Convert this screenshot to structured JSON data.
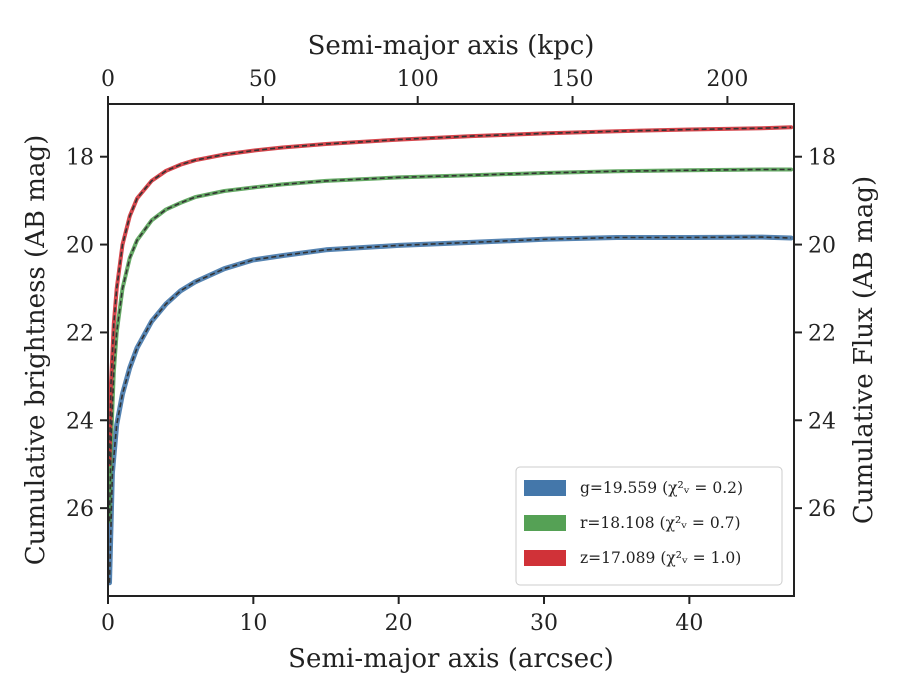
{
  "chart_data": {
    "type": "line",
    "xlabel": "Semi-major axis (arcsec)",
    "x2label": "Semi-major axis (kpc)",
    "ylabel": "Cumulative brightness (AB mag)",
    "y2label": "Cumulative Flux (AB mag)",
    "xlim": [
      0,
      47.2
    ],
    "x2lim": [
      0,
      221.5
    ],
    "ylim": [
      28.0,
      16.8
    ],
    "y_inverted": true,
    "xticks": [
      0,
      10,
      20,
      30,
      40
    ],
    "xtick_labels": [
      "0",
      "10",
      "20",
      "30",
      "40"
    ],
    "x2ticks": [
      0,
      50,
      100,
      150,
      200
    ],
    "x2tick_labels": [
      "0",
      "50",
      "100",
      "150",
      "200"
    ],
    "yticks": [
      18,
      20,
      22,
      24,
      26
    ],
    "ytick_labels": [
      "18",
      "20",
      "22",
      "24",
      "26"
    ],
    "grid": false,
    "legend_position": "lower-right",
    "series": [
      {
        "name": "g=19.559",
        "chi_label": "(χ²ᵥ = 0.2)",
        "color": "#4477aa",
        "x": [
          0.1,
          0.3,
          0.6,
          1.0,
          1.5,
          2.0,
          3.0,
          4.0,
          5.0,
          6.0,
          8.0,
          10.0,
          12.0,
          15.0,
          20.0,
          25.0,
          30.0,
          35.0,
          40.0,
          45.0,
          47.0
        ],
        "y": [
          27.7,
          25.2,
          24.1,
          23.4,
          22.8,
          22.35,
          21.75,
          21.35,
          21.05,
          20.85,
          20.55,
          20.35,
          20.25,
          20.12,
          20.02,
          19.95,
          19.88,
          19.84,
          19.84,
          19.83,
          19.85
        ]
      },
      {
        "name": "r=18.108",
        "chi_label": "(χ²ᵥ = 0.7)",
        "color": "#55a155",
        "x": [
          0.1,
          0.2,
          0.4,
          0.6,
          1.0,
          1.5,
          2.0,
          3.0,
          4.0,
          5.0,
          6.0,
          8.0,
          10.0,
          12.0,
          15.0,
          20.0,
          25.0,
          30.0,
          35.0,
          40.0,
          45.0,
          47.0
        ],
        "y": [
          26.3,
          24.6,
          22.9,
          22.0,
          21.0,
          20.3,
          19.9,
          19.45,
          19.2,
          19.05,
          18.92,
          18.78,
          18.7,
          18.63,
          18.55,
          18.47,
          18.42,
          18.37,
          18.33,
          18.31,
          18.29,
          18.29
        ]
      },
      {
        "name": "z=17.089",
        "chi_label": "(χ²ᵥ = 1.0)",
        "color": "#d03238",
        "x": [
          0.1,
          0.2,
          0.4,
          0.6,
          1.0,
          1.5,
          2.0,
          3.0,
          4.0,
          5.0,
          6.0,
          8.0,
          10.0,
          12.0,
          15.0,
          20.0,
          25.0,
          30.0,
          35.0,
          40.0,
          45.0,
          47.0
        ],
        "y": [
          25.0,
          23.2,
          21.8,
          21.0,
          20.0,
          19.35,
          18.95,
          18.55,
          18.32,
          18.18,
          18.08,
          17.95,
          17.86,
          17.79,
          17.71,
          17.61,
          17.53,
          17.47,
          17.42,
          17.38,
          17.35,
          17.33
        ]
      }
    ]
  }
}
